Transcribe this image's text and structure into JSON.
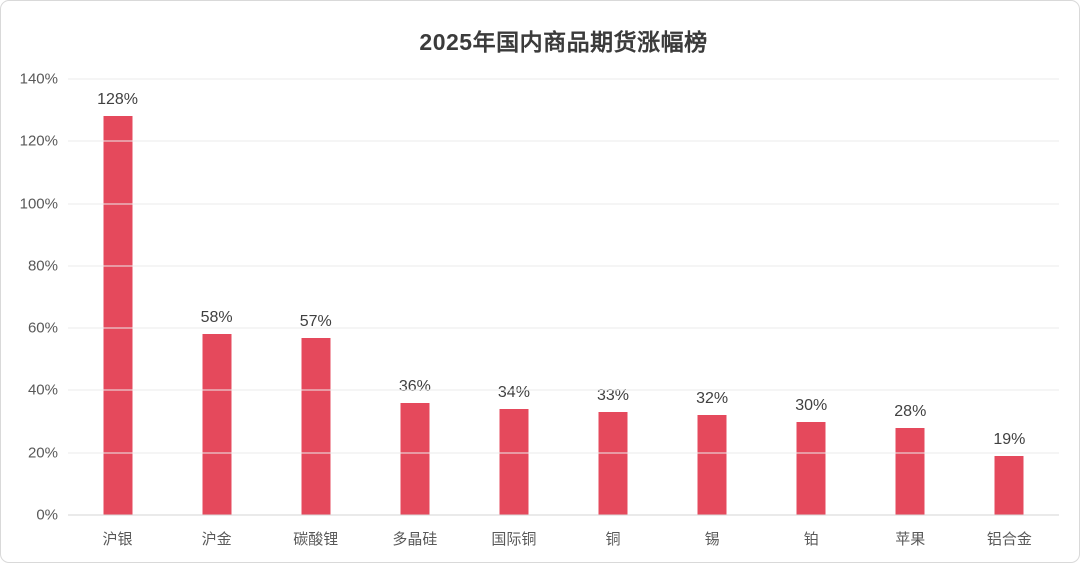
{
  "chart_data": {
    "type": "bar",
    "title": "2025年国内商品期货涨幅榜",
    "categories": [
      "沪银",
      "沪金",
      "碳酸锂",
      "多晶硅",
      "国际铜",
      "铜",
      "锡",
      "铂",
      "苹果",
      "铝合金"
    ],
    "values": [
      128,
      58,
      57,
      36,
      34,
      33,
      32,
      30,
      28,
      19
    ],
    "data_labels": [
      "128%",
      "58%",
      "57%",
      "36%",
      "34%",
      "33%",
      "32%",
      "30%",
      "28%",
      "19%"
    ],
    "xlabel": "",
    "ylabel": "",
    "ylim": [
      0,
      140
    ],
    "yticks": [
      {
        "value": 0,
        "label": "0%"
      },
      {
        "value": 20,
        "label": "20%"
      },
      {
        "value": 40,
        "label": "40%"
      },
      {
        "value": 60,
        "label": "60%"
      },
      {
        "value": 80,
        "label": "80%"
      },
      {
        "value": 100,
        "label": "100%"
      },
      {
        "value": 120,
        "label": "120%"
      },
      {
        "value": 140,
        "label": "140%"
      }
    ],
    "grid": "horizontal",
    "legend_position": "none",
    "bar_color": "#e5495c",
    "gridline_color": "#ebebeb",
    "baseline_color": "#d6d6d6",
    "title_color": "#3b3b3b",
    "label_color": "#404040",
    "tick_color": "#595959",
    "border_color": "#d9d9d9"
  }
}
